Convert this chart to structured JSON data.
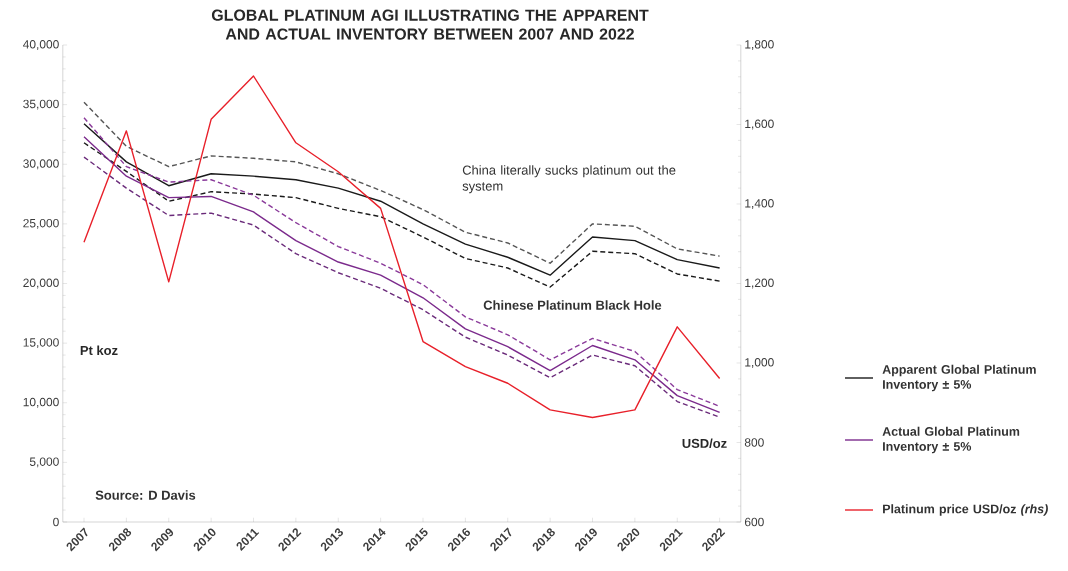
{
  "chart_data": {
    "type": "line",
    "title": "GLOBAL PLATINUM AGI ILLUSTRATING THE APPARENT AND ACTUAL INVENTORY BETWEEN 2007 AND 2022",
    "categories": [
      "2007",
      "2008",
      "2009",
      "2010",
      "2011",
      "2012",
      "2013",
      "2014",
      "2015",
      "2016",
      "2017",
      "2018",
      "2019",
      "2020",
      "2021",
      "2022"
    ],
    "ylabel": "Pt koz",
    "y2label": "USD/oz",
    "series": [
      {
        "name": "Apparent Global Platinum Inventory ± 5%",
        "color": "#1a1a1a",
        "line_style": "solid",
        "values": [
          33400,
          30200,
          28200,
          29200,
          29000,
          28700,
          28000,
          26900,
          25000,
          23300,
          22200,
          20700,
          23900,
          23600,
          22000,
          21300
        ]
      },
      {
        "color": "#555555",
        "line_style": "dashed",
        "values": [
          35200,
          31500,
          29800,
          30700,
          30500,
          30200,
          29200,
          27800,
          26200,
          24300,
          23400,
          21700,
          25000,
          24800,
          22900,
          22300
        ]
      },
      {
        "color": "#1a1a1a",
        "line_style": "dashed",
        "values": [
          31800,
          29400,
          26900,
          27700,
          27500,
          27200,
          26300,
          25600,
          23900,
          22100,
          21300,
          19700,
          22700,
          22500,
          20800,
          20200
        ]
      },
      {
        "name": "Actual Global Platinum Inventory ± 5%",
        "color": "#7b2a8c",
        "line_style": "solid",
        "values": [
          32300,
          29000,
          27200,
          27300,
          26000,
          23600,
          21800,
          20700,
          18800,
          16200,
          14700,
          12700,
          14800,
          13600,
          10600,
          9200
        ]
      },
      {
        "color": "#8a3a9a",
        "line_style": "dashed",
        "values": [
          33900,
          29800,
          28500,
          28700,
          27400,
          25100,
          23100,
          21700,
          19900,
          17200,
          15700,
          13600,
          15400,
          14300,
          11100,
          9700
        ]
      },
      {
        "color": "#6a2a7a",
        "line_style": "dashed",
        "values": [
          30600,
          28000,
          25700,
          25900,
          24900,
          22500,
          20900,
          19600,
          17800,
          15500,
          14000,
          12100,
          14000,
          13100,
          10100,
          8800
        ]
      },
      {
        "name": "Platinum price USD/oz *(rhs)*",
        "color": "#e8202a",
        "line_style": "solid",
        "axis": "y2",
        "values": [
          1304,
          1584,
          1204,
          1613,
          1722,
          1554,
          1481,
          1389,
          1054,
          991,
          949,
          882,
          863,
          882,
          1091,
          961
        ]
      }
    ],
    "ylim": [
      0,
      40000
    ],
    "yticks": [
      0,
      {
        "value": 5000,
        "label": "5,000"
      },
      {
        "value": 10000,
        "label": "10,000"
      },
      {
        "value": 15000,
        "label": "15,000"
      },
      {
        "value": 20000,
        "label": "20,000"
      },
      {
        "value": 25000,
        "label": "25,000"
      },
      {
        "value": 30000,
        "label": "30,000"
      },
      {
        "value": 35000,
        "label": "35,000"
      },
      {
        "value": 40000,
        "label": "40,000"
      }
    ],
    "y2lim": [
      600,
      1800
    ],
    "y2ticks": [
      600,
      800,
      {
        "value": 1000,
        "label": "1,000"
      },
      {
        "value": 1200,
        "label": "1,200"
      },
      {
        "value": 1400,
        "label": "1,400"
      },
      {
        "value": 1600,
        "label": "1,600"
      },
      {
        "value": 1800,
        "label": "1,800"
      }
    ],
    "annotations": [
      "China literally sucks platinum out the system",
      "Chinese Platinum Black Hole",
      "Source: D Davis"
    ],
    "legend": "right",
    "grid": false,
    "marker": "none"
  }
}
